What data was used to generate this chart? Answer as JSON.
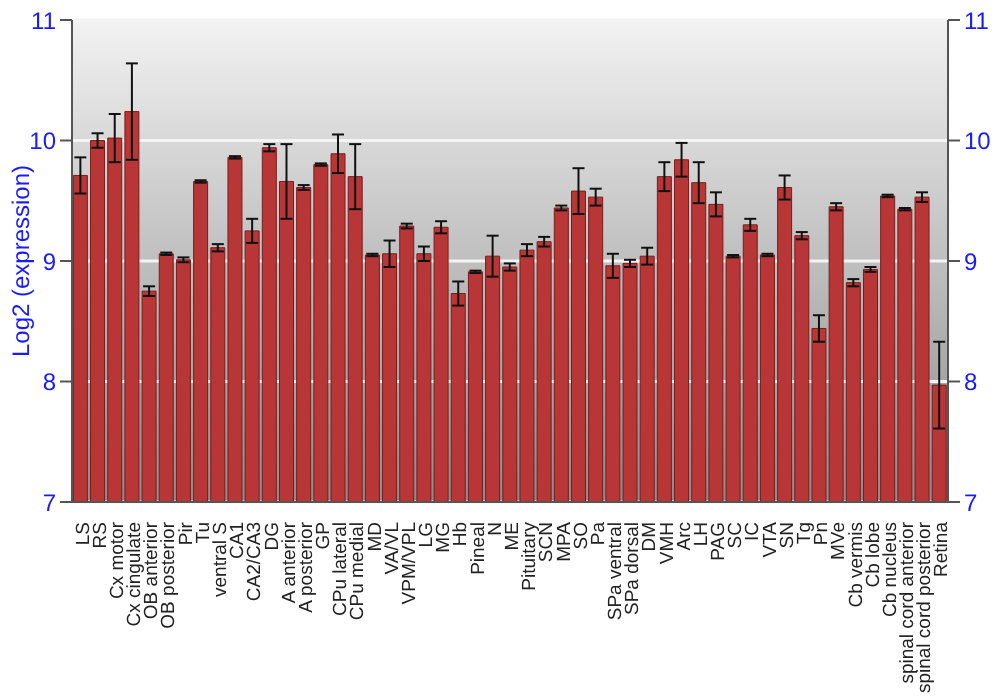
{
  "chart_data": {
    "type": "bar",
    "ylabel": "Log2 (expression)",
    "categories": [
      "LS",
      "RS",
      "Cx motor",
      "Cx cingulate",
      "OB anterior",
      "OB posterior",
      "Pir",
      "Tu",
      "ventral S",
      "CA1",
      "CA2/CA3",
      "DG",
      "A anterior",
      "A posterior",
      "GP",
      "CPu lateral",
      "CPu medial",
      "MD",
      "VA/VL",
      "VPM/VPL",
      "LG",
      "MG",
      "Hb",
      "Pineal",
      "N",
      "ME",
      "Pituitary",
      "SCN",
      "MPA",
      "SO",
      "Pa",
      "SPa ventral",
      "SPa dorsal",
      "DM",
      "VMH",
      "Arc",
      "LH",
      "PAG",
      "SC",
      "IC",
      "VTA",
      "SN",
      "Tg",
      "Pn",
      "MVe",
      "Cb vermis",
      "Cb lobe",
      "Cb nucleus",
      "spinal cord anterior",
      "spinal cord posterior",
      "Retina"
    ],
    "values": [
      9.71,
      10.0,
      10.02,
      10.24,
      8.75,
      9.06,
      9.01,
      9.66,
      9.11,
      9.86,
      9.25,
      9.94,
      9.66,
      9.61,
      9.8,
      9.89,
      9.7,
      9.05,
      9.06,
      9.29,
      9.06,
      9.28,
      8.73,
      8.91,
      9.04,
      8.95,
      9.09,
      9.16,
      9.44,
      9.58,
      9.53,
      8.96,
      8.98,
      9.04,
      9.7,
      9.84,
      9.65,
      9.47,
      9.04,
      9.3,
      9.05,
      9.61,
      9.21,
      8.44,
      9.45,
      8.82,
      8.93,
      9.54,
      9.43,
      9.53,
      7.97
    ],
    "errors": [
      0.15,
      0.06,
      0.2,
      0.4,
      0.04,
      0.01,
      0.02,
      0.01,
      0.03,
      0.01,
      0.1,
      0.03,
      0.31,
      0.02,
      0.01,
      0.16,
      0.27,
      0.01,
      0.11,
      0.02,
      0.06,
      0.05,
      0.1,
      0.01,
      0.17,
      0.03,
      0.05,
      0.04,
      0.02,
      0.19,
      0.07,
      0.1,
      0.03,
      0.07,
      0.12,
      0.14,
      0.17,
      0.1,
      0.01,
      0.05,
      0.01,
      0.1,
      0.03,
      0.11,
      0.03,
      0.03,
      0.02,
      0.01,
      0.01,
      0.04,
      0.36
    ],
    "color": "#b83636",
    "ylim": [
      7,
      11
    ],
    "yticks": [
      7,
      8,
      9,
      10,
      11
    ],
    "y2lim": [
      7,
      11
    ],
    "y2ticks": [
      7,
      8,
      9,
      10,
      11
    ],
    "grid": "y"
  }
}
